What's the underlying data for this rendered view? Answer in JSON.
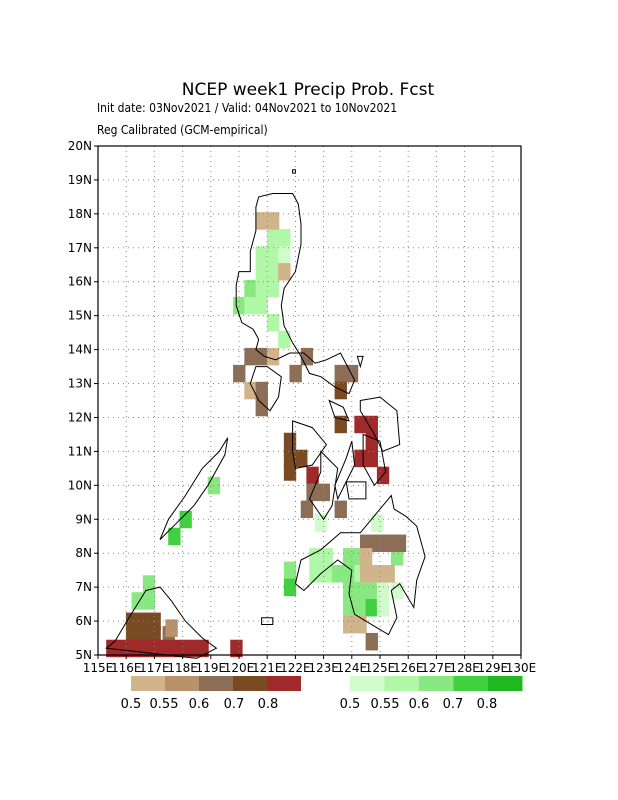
{
  "title": "NCEP week1 Precip Prob. Fcst",
  "subtitle1": "Init date: 03Nov2021 / Valid: 04Nov2021 to 10Nov2021",
  "subtitle2": "Reg Calibrated (GCM-empirical)",
  "chart_data": {
    "type": "heatmap",
    "grid_resolution_deg": 1,
    "lon_range": [
      115,
      130
    ],
    "lat_range": [
      5,
      20
    ],
    "grid_lines": true,
    "x_tick_labels": [
      "115E",
      "116E",
      "117E",
      "118E",
      "119E",
      "120E",
      "121E",
      "122E",
      "123E",
      "124E",
      "125E",
      "126E",
      "127E",
      "128E",
      "129E",
      "130E"
    ],
    "y_tick_labels": [
      "5N",
      "6N",
      "7N",
      "8N",
      "9N",
      "10N",
      "11N",
      "12N",
      "13N",
      "14N",
      "15N",
      "16N",
      "17N",
      "18N",
      "19N",
      "20N"
    ],
    "dry_legend": {
      "labels": [
        "0.5",
        "0.55",
        "0.6",
        "0.7",
        "0.8"
      ],
      "colors": [
        "#d2b48c",
        "#b9916a",
        "#8b6e55",
        "#7a4b22",
        "#a02a2a"
      ]
    },
    "wet_legend": {
      "labels": [
        "0.5",
        "0.55",
        "0.6",
        "0.7",
        "0.8"
      ],
      "colors": [
        "#d0fccc",
        "#b0f8a8",
        "#8ae882",
        "#40d040",
        "#20b820"
      ]
    },
    "cells_wet": [
      {
        "lon": 121.2,
        "lat": 17.8,
        "level": 0
      },
      {
        "lon": 121.6,
        "lat": 17.3,
        "level": 1
      },
      {
        "lon": 121.2,
        "lat": 17.3,
        "level": 1
      },
      {
        "lon": 120.8,
        "lat": 16.8,
        "level": 1
      },
      {
        "lon": 121.2,
        "lat": 16.8,
        "level": 1
      },
      {
        "lon": 121.6,
        "lat": 16.8,
        "level": 0
      },
      {
        "lon": 120.8,
        "lat": 16.3,
        "level": 1
      },
      {
        "lon": 121.2,
        "lat": 16.3,
        "level": 1
      },
      {
        "lon": 120.4,
        "lat": 15.8,
        "level": 2
      },
      {
        "lon": 120.8,
        "lat": 15.8,
        "level": 1
      },
      {
        "lon": 121.2,
        "lat": 15.8,
        "level": 1
      },
      {
        "lon": 120.0,
        "lat": 15.3,
        "level": 2
      },
      {
        "lon": 120.4,
        "lat": 15.3,
        "level": 1
      },
      {
        "lon": 120.8,
        "lat": 15.3,
        "level": 1
      },
      {
        "lon": 121.2,
        "lat": 14.8,
        "level": 1
      },
      {
        "lon": 121.6,
        "lat": 14.3,
        "level": 1
      },
      {
        "lon": 119.1,
        "lat": 10.0,
        "level": 2
      },
      {
        "lon": 118.1,
        "lat": 9.0,
        "level": 3
      },
      {
        "lon": 117.7,
        "lat": 8.5,
        "level": 3
      },
      {
        "lon": 116.8,
        "lat": 7.1,
        "level": 2
      },
      {
        "lon": 116.4,
        "lat": 6.6,
        "level": 2
      },
      {
        "lon": 116.8,
        "lat": 6.6,
        "level": 2
      },
      {
        "lon": 121.8,
        "lat": 7.5,
        "level": 2
      },
      {
        "lon": 121.8,
        "lat": 7.0,
        "level": 3
      },
      {
        "lon": 122.7,
        "lat": 7.9,
        "level": 1
      },
      {
        "lon": 123.1,
        "lat": 7.9,
        "level": 1
      },
      {
        "lon": 122.7,
        "lat": 7.4,
        "level": 1
      },
      {
        "lon": 123.1,
        "lat": 7.4,
        "level": 1
      },
      {
        "lon": 123.5,
        "lat": 7.4,
        "level": 2
      },
      {
        "lon": 123.9,
        "lat": 7.9,
        "level": 2
      },
      {
        "lon": 124.3,
        "lat": 7.9,
        "level": 2
      },
      {
        "lon": 123.9,
        "lat": 7.4,
        "level": 2
      },
      {
        "lon": 124.3,
        "lat": 7.4,
        "level": 1
      },
      {
        "lon": 124.7,
        "lat": 7.4,
        "level": 1
      },
      {
        "lon": 123.9,
        "lat": 6.9,
        "level": 2
      },
      {
        "lon": 124.3,
        "lat": 6.9,
        "level": 2
      },
      {
        "lon": 124.7,
        "lat": 6.9,
        "level": 2
      },
      {
        "lon": 123.9,
        "lat": 6.4,
        "level": 2
      },
      {
        "lon": 124.3,
        "lat": 6.4,
        "level": 2
      },
      {
        "lon": 124.7,
        "lat": 6.4,
        "level": 3
      },
      {
        "lon": 125.1,
        "lat": 7.4,
        "level": 1
      },
      {
        "lon": 125.1,
        "lat": 6.9,
        "level": 0
      },
      {
        "lon": 125.1,
        "lat": 6.4,
        "level": 0
      },
      {
        "lon": 125.6,
        "lat": 7.9,
        "level": 2
      },
      {
        "lon": 125.6,
        "lat": 6.9,
        "level": 0
      },
      {
        "lon": 122.9,
        "lat": 8.9,
        "level": 0
      },
      {
        "lon": 124.9,
        "lat": 8.9,
        "level": 0
      }
    ],
    "cells_dry": [
      {
        "lon": 120.8,
        "lat": 17.8,
        "level": 0
      },
      {
        "lon": 121.2,
        "lat": 17.8,
        "level": 0
      },
      {
        "lon": 121.6,
        "lat": 16.3,
        "level": 0
      },
      {
        "lon": 120.4,
        "lat": 13.8,
        "level": 2
      },
      {
        "lon": 120.8,
        "lat": 13.8,
        "level": 2
      },
      {
        "lon": 121.2,
        "lat": 13.8,
        "level": 0
      },
      {
        "lon": 120.0,
        "lat": 13.3,
        "level": 2
      },
      {
        "lon": 120.4,
        "lat": 12.8,
        "level": 0
      },
      {
        "lon": 120.8,
        "lat": 12.8,
        "level": 2
      },
      {
        "lon": 120.8,
        "lat": 12.3,
        "level": 2
      },
      {
        "lon": 122.0,
        "lat": 13.3,
        "level": 2
      },
      {
        "lon": 122.4,
        "lat": 13.8,
        "level": 2
      },
      {
        "lon": 123.6,
        "lat": 13.3,
        "level": 2
      },
      {
        "lon": 124.0,
        "lat": 13.3,
        "level": 2
      },
      {
        "lon": 123.6,
        "lat": 12.8,
        "level": 3
      },
      {
        "lon": 123.6,
        "lat": 11.8,
        "level": 3
      },
      {
        "lon": 124.3,
        "lat": 11.8,
        "level": 4
      },
      {
        "lon": 124.7,
        "lat": 11.8,
        "level": 4
      },
      {
        "lon": 124.7,
        "lat": 11.3,
        "level": 4
      },
      {
        "lon": 124.3,
        "lat": 10.8,
        "level": 4
      },
      {
        "lon": 124.7,
        "lat": 10.8,
        "level": 4
      },
      {
        "lon": 125.1,
        "lat": 10.3,
        "level": 4
      },
      {
        "lon": 121.8,
        "lat": 11.3,
        "level": 3
      },
      {
        "lon": 121.8,
        "lat": 10.8,
        "level": 3
      },
      {
        "lon": 122.2,
        "lat": 10.8,
        "level": 3
      },
      {
        "lon": 121.8,
        "lat": 10.4,
        "level": 3
      },
      {
        "lon": 122.6,
        "lat": 10.3,
        "level": 4
      },
      {
        "lon": 122.6,
        "lat": 9.8,
        "level": 2
      },
      {
        "lon": 123.0,
        "lat": 9.8,
        "level": 2
      },
      {
        "lon": 122.4,
        "lat": 9.3,
        "level": 2
      },
      {
        "lon": 123.6,
        "lat": 9.3,
        "level": 2
      },
      {
        "lon": 124.5,
        "lat": 8.3,
        "level": 2
      },
      {
        "lon": 124.9,
        "lat": 8.3,
        "level": 2
      },
      {
        "lon": 125.3,
        "lat": 8.3,
        "level": 2
      },
      {
        "lon": 125.7,
        "lat": 8.3,
        "level": 2
      },
      {
        "lon": 124.5,
        "lat": 7.9,
        "level": 0
      },
      {
        "lon": 124.9,
        "lat": 7.4,
        "level": 0
      },
      {
        "lon": 125.3,
        "lat": 7.4,
        "level": 0
      },
      {
        "lon": 124.5,
        "lat": 7.4,
        "level": 0
      },
      {
        "lon": 123.9,
        "lat": 5.9,
        "level": 0
      },
      {
        "lon": 124.3,
        "lat": 5.9,
        "level": 0
      },
      {
        "lon": 124.7,
        "lat": 5.4,
        "level": 2
      },
      {
        "lon": 116.2,
        "lat": 6.0,
        "level": 3
      },
      {
        "lon": 116.6,
        "lat": 6.0,
        "level": 3
      },
      {
        "lon": 117.0,
        "lat": 6.0,
        "level": 3
      },
      {
        "lon": 116.2,
        "lat": 5.6,
        "level": 3
      },
      {
        "lon": 116.6,
        "lat": 5.6,
        "level": 3
      },
      {
        "lon": 117.0,
        "lat": 5.6,
        "level": 3
      },
      {
        "lon": 117.5,
        "lat": 5.6,
        "level": 2
      },
      {
        "lon": 117.6,
        "lat": 5.8,
        "level": 1
      },
      {
        "lon": 115.9,
        "lat": 5.2,
        "level": 4
      },
      {
        "lon": 116.3,
        "lat": 5.2,
        "level": 4
      },
      {
        "lon": 116.7,
        "lat": 5.2,
        "level": 4
      },
      {
        "lon": 117.1,
        "lat": 5.2,
        "level": 4
      },
      {
        "lon": 117.5,
        "lat": 5.2,
        "level": 4
      },
      {
        "lon": 117.9,
        "lat": 5.2,
        "level": 4
      },
      {
        "lon": 118.3,
        "lat": 5.2,
        "level": 4
      },
      {
        "lon": 118.7,
        "lat": 5.2,
        "level": 4
      },
      {
        "lon": 119.9,
        "lat": 5.2,
        "level": 4
      },
      {
        "lon": 115.5,
        "lat": 5.2,
        "level": 4
      }
    ]
  }
}
